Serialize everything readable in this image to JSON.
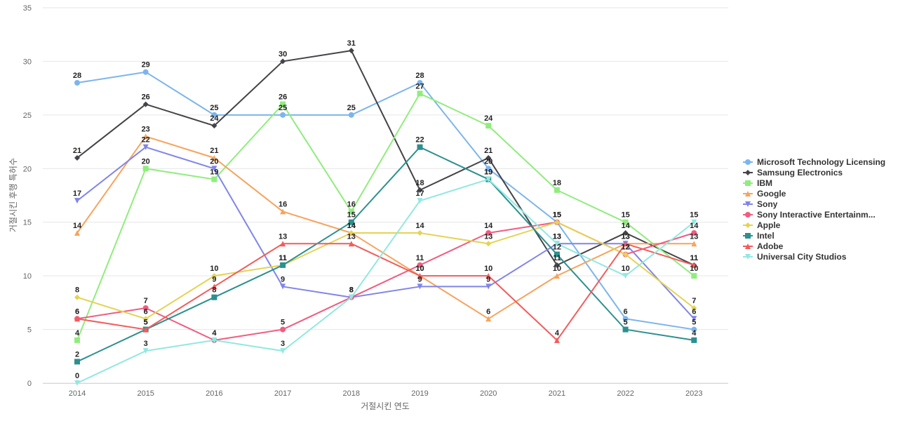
{
  "chart_data": {
    "type": "line",
    "xlabel": "거절시킨 연도",
    "ylabel": "거절시킨 후행 특허수",
    "x": [
      "2014",
      "2015",
      "2016",
      "2017",
      "2018",
      "2019",
      "2020",
      "2021",
      "2022",
      "2023"
    ],
    "ylim": [
      0,
      35
    ],
    "yticks": [
      0,
      5,
      10,
      15,
      20,
      25,
      30,
      35
    ],
    "grid": true,
    "legend_position": "right",
    "series": [
      {
        "name": "Microsoft Technology Licensing",
        "color": "#7cb5ec",
        "marker": "circle",
        "values": [
          28,
          29,
          25,
          25,
          25,
          28,
          20,
          15,
          6,
          5
        ]
      },
      {
        "name": "Samsung Electronics",
        "color": "#434348",
        "marker": "diamond",
        "values": [
          21,
          26,
          24,
          30,
          31,
          18,
          21,
          11,
          14,
          11
        ]
      },
      {
        "name": "IBM",
        "color": "#90ed7d",
        "marker": "square",
        "values": [
          4,
          20,
          19,
          26,
          16,
          27,
          24,
          18,
          15,
          10
        ]
      },
      {
        "name": "Google",
        "color": "#f7a35c",
        "marker": "triangle",
        "values": [
          14,
          23,
          21,
          16,
          14,
          10,
          6,
          10,
          13,
          13
        ]
      },
      {
        "name": "Sony",
        "color": "#8085e9",
        "marker": "triangle-down",
        "values": [
          17,
          22,
          20,
          9,
          8,
          9,
          9,
          13,
          13,
          6
        ]
      },
      {
        "name": "Sony Interactive Entertainm...",
        "color": "#f15c80",
        "marker": "circle",
        "values": [
          6,
          7,
          4,
          5,
          8,
          11,
          14,
          15,
          12,
          14
        ]
      },
      {
        "name": "Apple",
        "color": "#e4d354",
        "marker": "diamond",
        "values": [
          8,
          6,
          10,
          11,
          14,
          14,
          13,
          15,
          12,
          7
        ]
      },
      {
        "name": "Intel",
        "color": "#2b908f",
        "marker": "square",
        "values": [
          2,
          5,
          8,
          11,
          15,
          22,
          19,
          12,
          5,
          4
        ]
      },
      {
        "name": "Adobe",
        "color": "#f45b5b",
        "marker": "triangle",
        "values": [
          6,
          5,
          9,
          13,
          13,
          10,
          10,
          4,
          13,
          11
        ]
      },
      {
        "name": "Universal City Studios",
        "color": "#91e8e1",
        "marker": "triangle-down",
        "values": [
          0,
          3,
          4,
          3,
          8,
          17,
          19,
          13,
          10,
          15
        ]
      }
    ]
  }
}
